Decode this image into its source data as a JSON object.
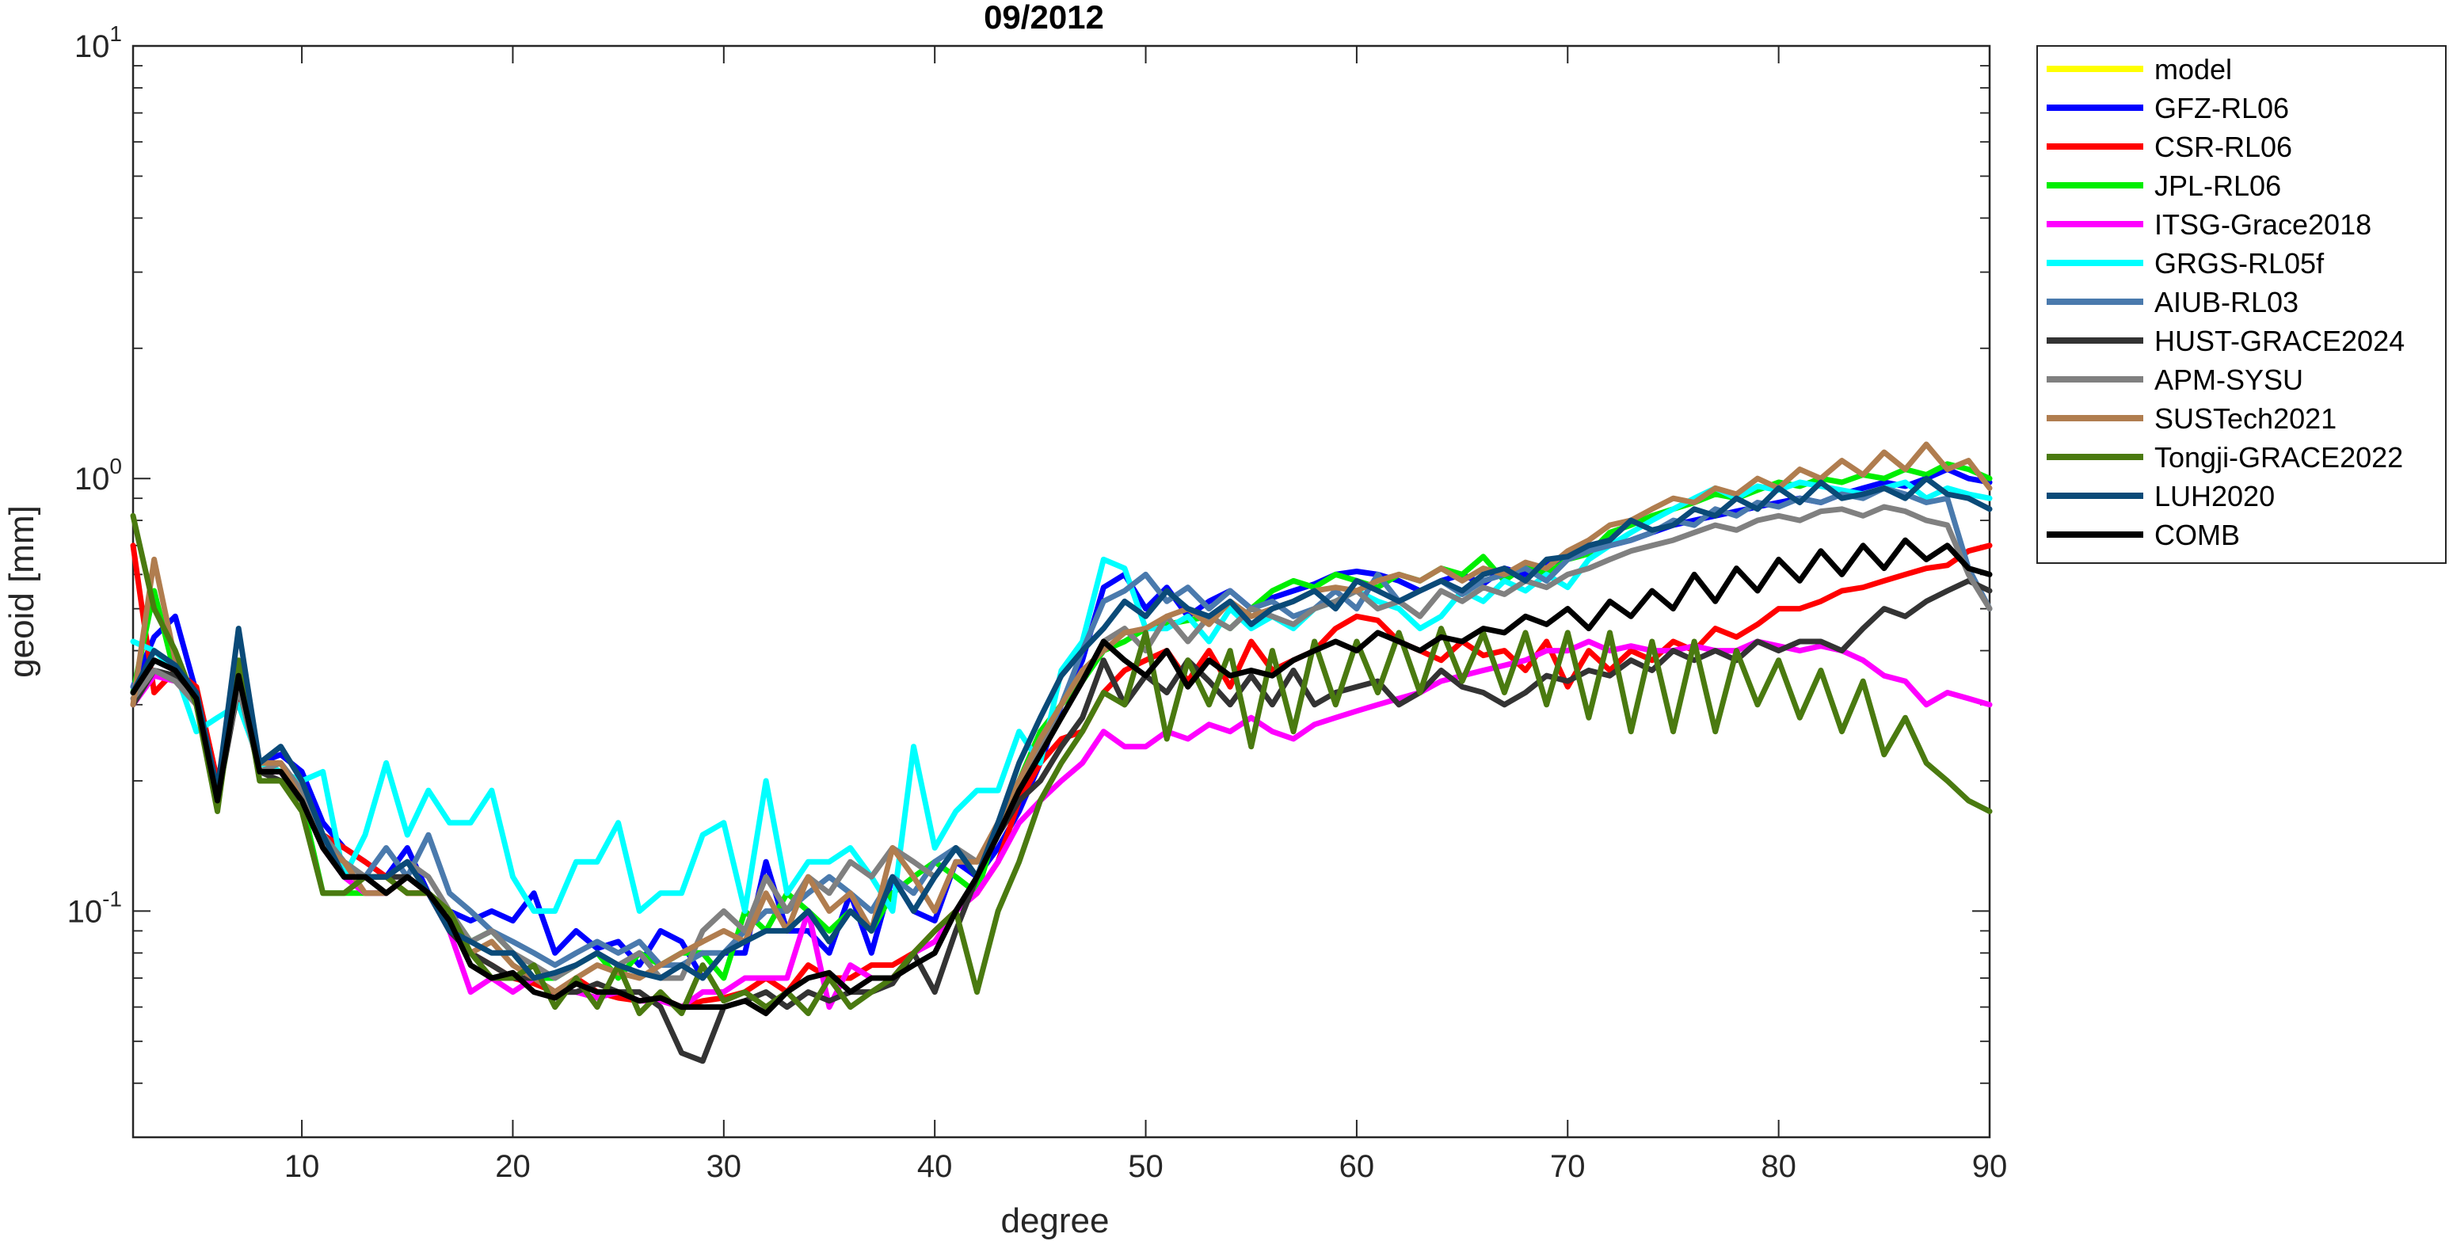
{
  "chart_data": {
    "type": "line",
    "title": "09/2012",
    "xlabel": "degree",
    "ylabel": "geoid [mm]",
    "xlim": [
      2,
      90
    ],
    "ylim": [
      0.03,
      10
    ],
    "yscale": "log",
    "xticks": [
      10,
      20,
      30,
      40,
      50,
      60,
      70,
      80,
      90
    ],
    "yticks": [
      {
        "value": 10,
        "base": "10",
        "exp": "1"
      },
      {
        "value": 1,
        "base": "10",
        "exp": "0"
      },
      {
        "value": 0.1,
        "base": "10",
        "exp": "-1"
      }
    ],
    "legend_position": "outside-top-right",
    "grid": false,
    "series": [
      {
        "name": "model",
        "color": "#ffff00",
        "visible": false,
        "values": []
      },
      {
        "name": "GFZ-RL06",
        "color": "#0000ff",
        "values": [
          0.33,
          0.43,
          0.48,
          0.32,
          0.19,
          0.34,
          0.22,
          0.23,
          0.21,
          0.16,
          0.14,
          0.13,
          0.12,
          0.14,
          0.11,
          0.1,
          0.095,
          0.1,
          0.095,
          0.11,
          0.08,
          0.09,
          0.082,
          0.085,
          0.075,
          0.09,
          0.085,
          0.07,
          0.08,
          0.08,
          0.13,
          0.09,
          0.09,
          0.08,
          0.11,
          0.08,
          0.12,
          0.1,
          0.095,
          0.13,
          0.12,
          0.14,
          0.17,
          0.22,
          0.3,
          0.38,
          0.56,
          0.6,
          0.5,
          0.56,
          0.48,
          0.52,
          0.55,
          0.5,
          0.53,
          0.55,
          0.57,
          0.6,
          0.61,
          0.6,
          0.58,
          0.55,
          0.58,
          0.6,
          0.57,
          0.62,
          0.6,
          0.63,
          0.66,
          0.68,
          0.7,
          0.72,
          0.75,
          0.78,
          0.8,
          0.82,
          0.84,
          0.86,
          0.88,
          0.9,
          0.88,
          0.92,
          0.95,
          0.98,
          0.96,
          1.0,
          1.05,
          1.0,
          0.98
        ]
      },
      {
        "name": "CSR-RL06",
        "color": "#ff0000",
        "values": [
          0.7,
          0.32,
          0.36,
          0.33,
          0.2,
          0.32,
          0.22,
          0.21,
          0.19,
          0.15,
          0.14,
          0.13,
          0.12,
          0.11,
          0.11,
          0.1,
          0.08,
          0.075,
          0.07,
          0.068,
          0.065,
          0.07,
          0.065,
          0.063,
          0.062,
          0.063,
          0.06,
          0.062,
          0.063,
          0.065,
          0.07,
          0.065,
          0.075,
          0.07,
          0.07,
          0.075,
          0.075,
          0.08,
          0.09,
          0.1,
          0.11,
          0.13,
          0.18,
          0.22,
          0.25,
          0.26,
          0.32,
          0.36,
          0.38,
          0.4,
          0.34,
          0.4,
          0.33,
          0.42,
          0.36,
          0.38,
          0.4,
          0.45,
          0.48,
          0.47,
          0.42,
          0.4,
          0.38,
          0.42,
          0.39,
          0.4,
          0.36,
          0.42,
          0.33,
          0.4,
          0.36,
          0.4,
          0.38,
          0.42,
          0.4,
          0.45,
          0.43,
          0.46,
          0.5,
          0.5,
          0.52,
          0.55,
          0.56,
          0.58,
          0.6,
          0.62,
          0.63,
          0.68,
          0.7
        ]
      },
      {
        "name": "JPL-RL06",
        "color": "#00ee00",
        "values": [
          0.32,
          0.55,
          0.35,
          0.3,
          0.18,
          0.35,
          0.22,
          0.21,
          0.18,
          0.11,
          0.11,
          0.11,
          0.11,
          0.12,
          0.11,
          0.1,
          0.085,
          0.09,
          0.08,
          0.07,
          0.07,
          0.075,
          0.08,
          0.07,
          0.08,
          0.075,
          0.08,
          0.08,
          0.07,
          0.1,
          0.09,
          0.11,
          0.1,
          0.09,
          0.1,
          0.09,
          0.11,
          0.12,
          0.13,
          0.12,
          0.11,
          0.16,
          0.2,
          0.26,
          0.3,
          0.34,
          0.4,
          0.42,
          0.45,
          0.46,
          0.47,
          0.48,
          0.45,
          0.5,
          0.55,
          0.58,
          0.56,
          0.6,
          0.58,
          0.56,
          0.6,
          0.58,
          0.62,
          0.6,
          0.66,
          0.58,
          0.63,
          0.6,
          0.65,
          0.67,
          0.75,
          0.78,
          0.82,
          0.85,
          0.88,
          0.92,
          0.9,
          0.94,
          0.98,
          0.96,
          1.0,
          0.98,
          1.02,
          1.0,
          1.05,
          1.02,
          1.08,
          1.05,
          1.0
        ]
      },
      {
        "name": "ITSG-Grace2018",
        "color": "#ff00ff",
        "values": [
          0.3,
          0.35,
          0.34,
          0.31,
          0.19,
          0.33,
          0.21,
          0.21,
          0.18,
          0.14,
          0.12,
          0.11,
          0.11,
          0.12,
          0.11,
          0.09,
          0.065,
          0.07,
          0.065,
          0.07,
          0.065,
          0.065,
          0.063,
          0.065,
          0.062,
          0.062,
          0.06,
          0.065,
          0.065,
          0.07,
          0.07,
          0.07,
          0.1,
          0.06,
          0.075,
          0.07,
          0.07,
          0.08,
          0.085,
          0.1,
          0.11,
          0.13,
          0.16,
          0.18,
          0.2,
          0.22,
          0.26,
          0.24,
          0.24,
          0.26,
          0.25,
          0.27,
          0.26,
          0.28,
          0.26,
          0.25,
          0.27,
          0.28,
          0.29,
          0.3,
          0.31,
          0.32,
          0.34,
          0.35,
          0.36,
          0.37,
          0.38,
          0.4,
          0.4,
          0.42,
          0.4,
          0.41,
          0.4,
          0.4,
          0.41,
          0.4,
          0.4,
          0.42,
          0.41,
          0.4,
          0.41,
          0.4,
          0.38,
          0.35,
          0.34,
          0.3,
          0.32,
          0.31,
          0.3
        ]
      },
      {
        "name": "GRGS-RL05f",
        "color": "#00ffff",
        "values": [
          0.42,
          0.4,
          0.36,
          0.26,
          0.28,
          0.3,
          0.22,
          0.21,
          0.2,
          0.21,
          0.12,
          0.15,
          0.22,
          0.15,
          0.19,
          0.16,
          0.16,
          0.19,
          0.12,
          0.1,
          0.1,
          0.13,
          0.13,
          0.16,
          0.1,
          0.11,
          0.11,
          0.15,
          0.16,
          0.1,
          0.2,
          0.11,
          0.13,
          0.13,
          0.14,
          0.12,
          0.1,
          0.24,
          0.14,
          0.17,
          0.19,
          0.19,
          0.26,
          0.22,
          0.36,
          0.42,
          0.65,
          0.62,
          0.45,
          0.45,
          0.48,
          0.42,
          0.5,
          0.45,
          0.48,
          0.45,
          0.5,
          0.52,
          0.55,
          0.52,
          0.5,
          0.45,
          0.48,
          0.55,
          0.52,
          0.58,
          0.55,
          0.6,
          0.56,
          0.65,
          0.7,
          0.75,
          0.8,
          0.85,
          0.9,
          0.95,
          0.9,
          0.96,
          0.94,
          0.98,
          0.96,
          0.94,
          0.92,
          0.95,
          0.98,
          0.9,
          0.95,
          0.92,
          0.9
        ]
      },
      {
        "name": "AIUB-RL03",
        "color": "#4a7aad",
        "values": [
          0.33,
          0.38,
          0.36,
          0.32,
          0.19,
          0.34,
          0.22,
          0.24,
          0.2,
          0.15,
          0.13,
          0.12,
          0.14,
          0.12,
          0.15,
          0.11,
          0.1,
          0.09,
          0.085,
          0.08,
          0.075,
          0.08,
          0.085,
          0.08,
          0.085,
          0.075,
          0.075,
          0.08,
          0.08,
          0.09,
          0.1,
          0.1,
          0.11,
          0.12,
          0.11,
          0.1,
          0.12,
          0.11,
          0.13,
          0.14,
          0.12,
          0.16,
          0.2,
          0.24,
          0.3,
          0.4,
          0.52,
          0.55,
          0.6,
          0.52,
          0.56,
          0.5,
          0.55,
          0.5,
          0.52,
          0.48,
          0.5,
          0.55,
          0.5,
          0.6,
          0.52,
          0.55,
          0.58,
          0.54,
          0.58,
          0.6,
          0.62,
          0.58,
          0.65,
          0.68,
          0.7,
          0.72,
          0.75,
          0.8,
          0.78,
          0.85,
          0.82,
          0.88,
          0.86,
          0.9,
          0.88,
          0.92,
          0.9,
          0.95,
          0.92,
          0.88,
          0.9,
          0.62,
          0.5
        ]
      },
      {
        "name": "HUST-GRACE2024",
        "color": "#333333",
        "values": [
          0.3,
          0.36,
          0.35,
          0.3,
          0.18,
          0.33,
          0.21,
          0.2,
          0.18,
          0.14,
          0.12,
          0.12,
          0.12,
          0.12,
          0.11,
          0.09,
          0.08,
          0.075,
          0.07,
          0.07,
          0.065,
          0.065,
          0.068,
          0.065,
          0.065,
          0.06,
          0.047,
          0.045,
          0.06,
          0.062,
          0.065,
          0.06,
          0.065,
          0.062,
          0.065,
          0.065,
          0.068,
          0.08,
          0.065,
          0.09,
          0.12,
          0.15,
          0.18,
          0.2,
          0.24,
          0.28,
          0.38,
          0.3,
          0.35,
          0.32,
          0.38,
          0.34,
          0.3,
          0.35,
          0.3,
          0.36,
          0.3,
          0.32,
          0.33,
          0.34,
          0.3,
          0.32,
          0.36,
          0.33,
          0.32,
          0.3,
          0.32,
          0.35,
          0.34,
          0.36,
          0.35,
          0.38,
          0.36,
          0.4,
          0.38,
          0.4,
          0.38,
          0.42,
          0.4,
          0.42,
          0.42,
          0.4,
          0.45,
          0.5,
          0.48,
          0.52,
          0.55,
          0.58,
          0.55
        ]
      },
      {
        "name": "APM-SYSU",
        "color": "#808080",
        "values": [
          0.31,
          0.36,
          0.34,
          0.3,
          0.19,
          0.33,
          0.21,
          0.22,
          0.19,
          0.15,
          0.13,
          0.12,
          0.12,
          0.13,
          0.12,
          0.1,
          0.085,
          0.09,
          0.08,
          0.075,
          0.07,
          0.075,
          0.08,
          0.075,
          0.08,
          0.07,
          0.07,
          0.09,
          0.1,
          0.09,
          0.12,
          0.1,
          0.12,
          0.11,
          0.13,
          0.12,
          0.14,
          0.13,
          0.12,
          0.14,
          0.13,
          0.15,
          0.2,
          0.24,
          0.28,
          0.34,
          0.42,
          0.45,
          0.4,
          0.48,
          0.42,
          0.48,
          0.45,
          0.5,
          0.48,
          0.46,
          0.5,
          0.52,
          0.55,
          0.5,
          0.52,
          0.48,
          0.55,
          0.52,
          0.56,
          0.54,
          0.58,
          0.56,
          0.6,
          0.62,
          0.65,
          0.68,
          0.7,
          0.72,
          0.75,
          0.78,
          0.76,
          0.8,
          0.82,
          0.8,
          0.84,
          0.85,
          0.82,
          0.86,
          0.84,
          0.8,
          0.78,
          0.6,
          0.5
        ]
      },
      {
        "name": "SUSTech2021",
        "color": "#b07d4f",
        "values": [
          0.3,
          0.65,
          0.38,
          0.31,
          0.18,
          0.36,
          0.22,
          0.22,
          0.18,
          0.14,
          0.13,
          0.11,
          0.11,
          0.12,
          0.11,
          0.1,
          0.08,
          0.085,
          0.075,
          0.07,
          0.065,
          0.07,
          0.075,
          0.072,
          0.07,
          0.075,
          0.08,
          0.085,
          0.09,
          0.085,
          0.11,
          0.09,
          0.12,
          0.1,
          0.11,
          0.09,
          0.14,
          0.12,
          0.1,
          0.13,
          0.13,
          0.16,
          0.2,
          0.25,
          0.3,
          0.36,
          0.4,
          0.44,
          0.45,
          0.48,
          0.5,
          0.46,
          0.52,
          0.48,
          0.5,
          0.52,
          0.55,
          0.56,
          0.55,
          0.58,
          0.6,
          0.58,
          0.62,
          0.58,
          0.62,
          0.6,
          0.64,
          0.62,
          0.68,
          0.72,
          0.78,
          0.8,
          0.85,
          0.9,
          0.88,
          0.95,
          0.92,
          1.0,
          0.95,
          1.05,
          1.0,
          1.1,
          1.02,
          1.15,
          1.05,
          1.2,
          1.05,
          1.1,
          0.95
        ]
      },
      {
        "name": "Tongji-GRACE2022",
        "color": "#4a7a10",
        "values": [
          0.82,
          0.5,
          0.4,
          0.3,
          0.17,
          0.38,
          0.2,
          0.2,
          0.17,
          0.11,
          0.11,
          0.12,
          0.12,
          0.11,
          0.11,
          0.1,
          0.08,
          0.07,
          0.07,
          0.075,
          0.06,
          0.07,
          0.06,
          0.075,
          0.058,
          0.065,
          0.058,
          0.075,
          0.062,
          0.065,
          0.06,
          0.065,
          0.058,
          0.07,
          0.06,
          0.065,
          0.07,
          0.08,
          0.09,
          0.1,
          0.065,
          0.1,
          0.13,
          0.18,
          0.22,
          0.26,
          0.32,
          0.3,
          0.44,
          0.25,
          0.38,
          0.3,
          0.4,
          0.24,
          0.4,
          0.26,
          0.42,
          0.3,
          0.42,
          0.32,
          0.44,
          0.32,
          0.45,
          0.34,
          0.44,
          0.32,
          0.44,
          0.3,
          0.44,
          0.28,
          0.44,
          0.26,
          0.42,
          0.26,
          0.42,
          0.26,
          0.4,
          0.3,
          0.38,
          0.28,
          0.36,
          0.26,
          0.34,
          0.23,
          0.28,
          0.22,
          0.2,
          0.18,
          0.17
        ]
      },
      {
        "name": "LUH2020",
        "color": "#0a4a78",
        "values": [
          0.32,
          0.4,
          0.37,
          0.32,
          0.19,
          0.45,
          0.22,
          0.24,
          0.2,
          0.15,
          0.12,
          0.12,
          0.12,
          0.13,
          0.11,
          0.09,
          0.085,
          0.08,
          0.08,
          0.07,
          0.072,
          0.075,
          0.08,
          0.075,
          0.072,
          0.07,
          0.075,
          0.07,
          0.08,
          0.085,
          0.09,
          0.09,
          0.1,
          0.085,
          0.1,
          0.09,
          0.12,
          0.1,
          0.12,
          0.14,
          0.12,
          0.16,
          0.22,
          0.28,
          0.35,
          0.4,
          0.45,
          0.52,
          0.48,
          0.55,
          0.5,
          0.48,
          0.52,
          0.46,
          0.5,
          0.52,
          0.55,
          0.5,
          0.58,
          0.55,
          0.52,
          0.55,
          0.58,
          0.55,
          0.6,
          0.62,
          0.58,
          0.65,
          0.66,
          0.7,
          0.72,
          0.8,
          0.76,
          0.78,
          0.85,
          0.82,
          0.9,
          0.85,
          0.95,
          0.88,
          0.98,
          0.9,
          0.92,
          0.95,
          0.9,
          1.0,
          0.92,
          0.9,
          0.85
        ]
      },
      {
        "name": "COMB",
        "color": "#000000",
        "values": [
          0.32,
          0.38,
          0.36,
          0.31,
          0.18,
          0.35,
          0.21,
          0.21,
          0.18,
          0.14,
          0.12,
          0.12,
          0.11,
          0.12,
          0.11,
          0.095,
          0.075,
          0.07,
          0.072,
          0.065,
          0.063,
          0.068,
          0.065,
          0.065,
          0.062,
          0.063,
          0.06,
          0.06,
          0.06,
          0.062,
          0.058,
          0.065,
          0.07,
          0.072,
          0.065,
          0.07,
          0.07,
          0.075,
          0.08,
          0.1,
          0.12,
          0.15,
          0.19,
          0.23,
          0.28,
          0.34,
          0.42,
          0.38,
          0.35,
          0.4,
          0.33,
          0.38,
          0.35,
          0.36,
          0.35,
          0.38,
          0.4,
          0.42,
          0.4,
          0.44,
          0.42,
          0.4,
          0.43,
          0.42,
          0.45,
          0.44,
          0.48,
          0.46,
          0.5,
          0.45,
          0.52,
          0.48,
          0.55,
          0.5,
          0.6,
          0.52,
          0.62,
          0.55,
          0.65,
          0.58,
          0.68,
          0.6,
          0.7,
          0.62,
          0.72,
          0.65,
          0.7,
          0.62,
          0.6
        ]
      }
    ]
  }
}
